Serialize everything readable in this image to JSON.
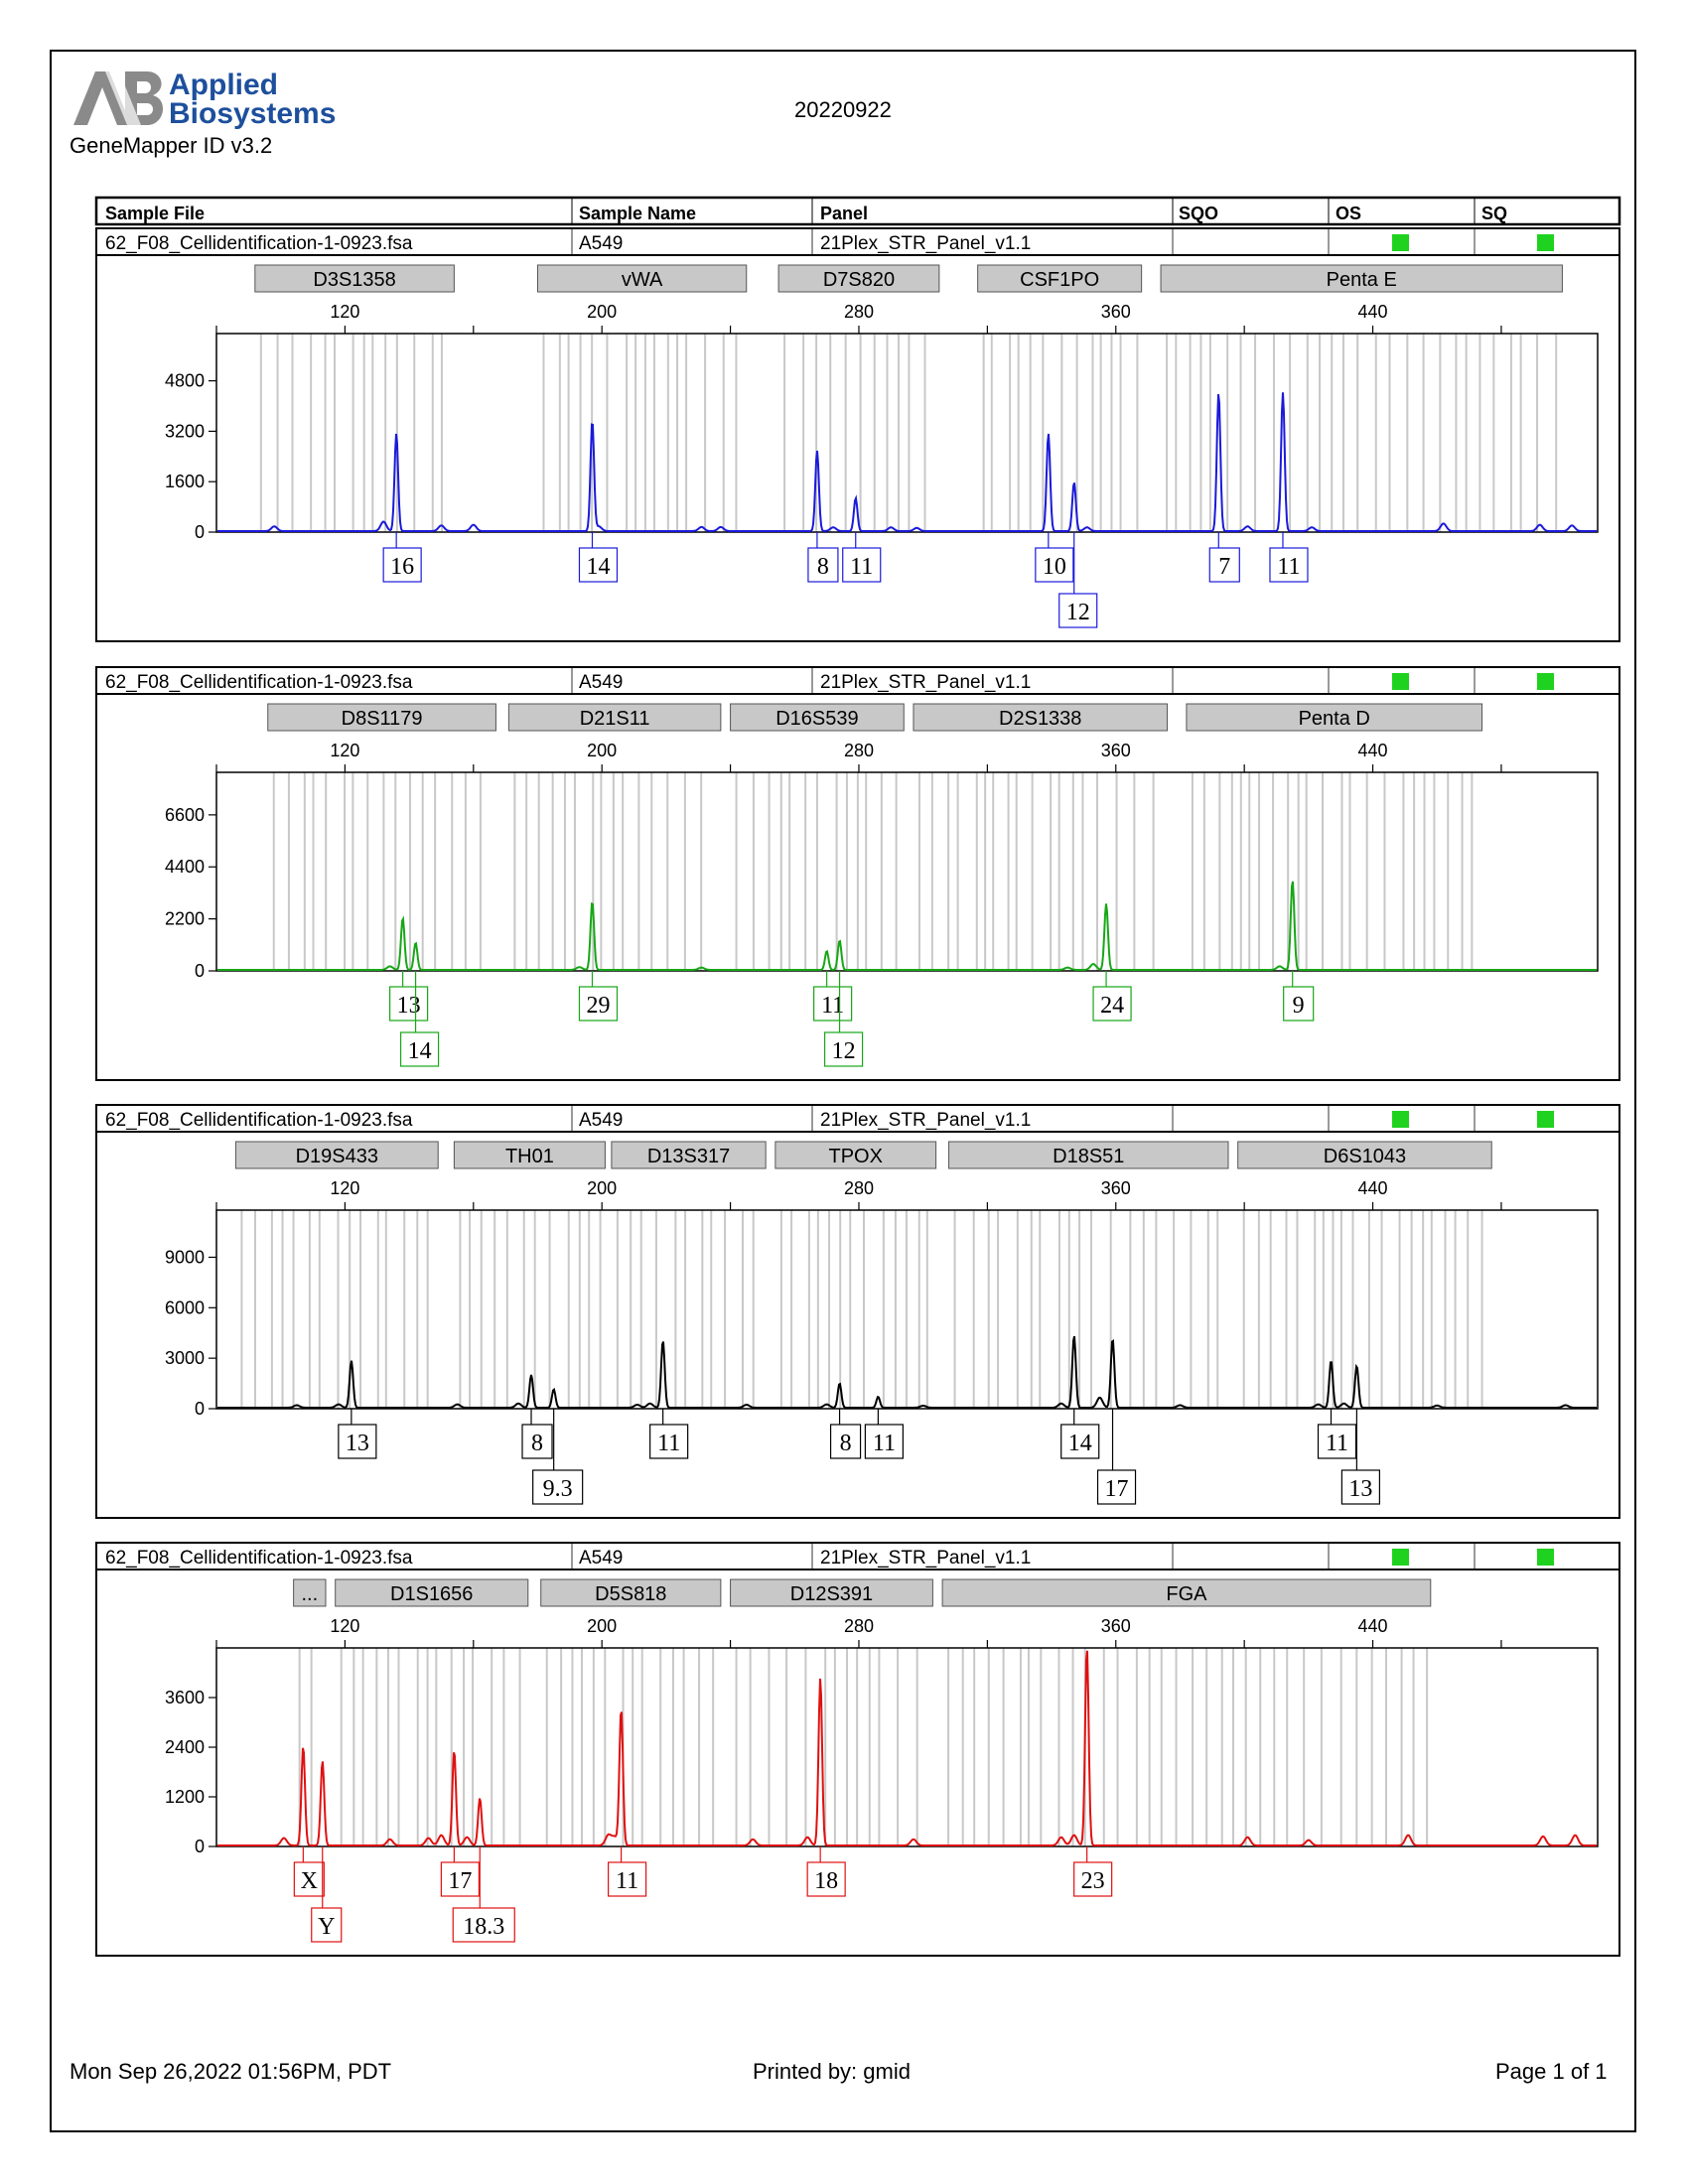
{
  "report": {
    "brand_line1": "Applied",
    "brand_line2": "Biosystems",
    "software": "GeneMapper ID v3.2",
    "date_code": "20220922",
    "printed_at": "Mon Sep 26,2022 01:56PM, PDT",
    "printed_by": "Printed by: gmid",
    "page": "Page 1 of 1"
  },
  "table_header": {
    "sample_file": "Sample File",
    "sample_name": "Sample Name",
    "panel": "Panel",
    "sqo": "SQO",
    "os": "OS",
    "sq": "SQ"
  },
  "colors": {
    "blue": "#1a1adb",
    "green": "#17a717",
    "black": "#000000",
    "red": "#e01010",
    "marker_fill": "#c8c8c8",
    "status_green": "#1fd21f"
  },
  "chart_data": [
    {
      "type": "line",
      "dye": "blue",
      "sample_file": "62_F08_Cellidentification-1-0923.fsa",
      "sample_name": "A549",
      "panel": "21Plex_STR_Panel_v1.1",
      "os_status": "green",
      "sq_status": "green",
      "markers": [
        {
          "name": "D3S1358",
          "start": 92,
          "end": 154
        },
        {
          "name": "vWA",
          "start": 180,
          "end": 245
        },
        {
          "name": "D7S820",
          "start": 255,
          "end": 305
        },
        {
          "name": "CSF1PO",
          "start": 317,
          "end": 368
        },
        {
          "name": "Penta E",
          "start": 374,
          "end": 499
        }
      ],
      "x_ticks": [
        120,
        200,
        280,
        360,
        440
      ],
      "x_range": [
        80,
        510
      ],
      "y_ticks": [
        0,
        1600,
        3200,
        4800
      ],
      "y_range": [
        0,
        6300
      ],
      "peaks": [
        {
          "x": 136,
          "y": 3100,
          "allele": "16"
        },
        {
          "x": 197,
          "y": 3500,
          "allele": "14"
        },
        {
          "x": 267,
          "y": 2550,
          "allele": "8"
        },
        {
          "x": 279,
          "y": 1050,
          "allele": "11"
        },
        {
          "x": 339,
          "y": 3100,
          "allele": "10"
        },
        {
          "x": 347,
          "y": 1550,
          "allele": "12"
        },
        {
          "x": 392,
          "y": 4400,
          "allele": "7"
        },
        {
          "x": 412,
          "y": 4400,
          "allele": "11"
        }
      ],
      "minor_peaks": [
        {
          "x": 98,
          "y": 150
        },
        {
          "x": 132,
          "y": 300
        },
        {
          "x": 150,
          "y": 180
        },
        {
          "x": 160,
          "y": 200
        },
        {
          "x": 199,
          "y": 150
        },
        {
          "x": 231,
          "y": 130
        },
        {
          "x": 237,
          "y": 130
        },
        {
          "x": 272,
          "y": 120
        },
        {
          "x": 290,
          "y": 120
        },
        {
          "x": 298,
          "y": 100
        },
        {
          "x": 351,
          "y": 120
        },
        {
          "x": 401,
          "y": 150
        },
        {
          "x": 421,
          "y": 120
        },
        {
          "x": 462,
          "y": 240
        },
        {
          "x": 492,
          "y": 200
        },
        {
          "x": 502,
          "y": 180
        }
      ]
    },
    {
      "type": "line",
      "dye": "green",
      "sample_file": "62_F08_Cellidentification-1-0923.fsa",
      "sample_name": "A549",
      "panel": "21Plex_STR_Panel_v1.1",
      "os_status": "green",
      "sq_status": "green",
      "markers": [
        {
          "name": "D8S1179",
          "start": 96,
          "end": 167
        },
        {
          "name": "D21S11",
          "start": 171,
          "end": 237
        },
        {
          "name": "D16S539",
          "start": 240,
          "end": 294
        },
        {
          "name": "D2S1338",
          "start": 297,
          "end": 376
        },
        {
          "name": "Penta D",
          "start": 382,
          "end": 474
        }
      ],
      "x_ticks": [
        120,
        200,
        280,
        360,
        440
      ],
      "x_range": [
        80,
        510
      ],
      "y_ticks": [
        0,
        2200,
        4400,
        6600
      ],
      "y_range": [
        0,
        8400
      ],
      "peaks": [
        {
          "x": 138,
          "y": 2200,
          "allele": "13"
        },
        {
          "x": 142,
          "y": 1150,
          "allele": "14"
        },
        {
          "x": 197,
          "y": 2900,
          "allele": "29"
        },
        {
          "x": 270,
          "y": 800,
          "allele": "11"
        },
        {
          "x": 274,
          "y": 1250,
          "allele": "12"
        },
        {
          "x": 357,
          "y": 2800,
          "allele": "24"
        },
        {
          "x": 415,
          "y": 3800,
          "allele": "9"
        }
      ],
      "minor_peaks": [
        {
          "x": 134,
          "y": 150
        },
        {
          "x": 193,
          "y": 120
        },
        {
          "x": 231,
          "y": 100
        },
        {
          "x": 345,
          "y": 100
        },
        {
          "x": 353,
          "y": 250
        },
        {
          "x": 411,
          "y": 150
        }
      ]
    },
    {
      "type": "line",
      "dye": "black",
      "sample_file": "62_F08_Cellidentification-1-0923.fsa",
      "sample_name": "A549",
      "panel": "21Plex_STR_Panel_v1.1",
      "os_status": "green",
      "sq_status": "green",
      "markers": [
        {
          "name": "D19S433",
          "start": 86,
          "end": 149
        },
        {
          "name": "TH01",
          "start": 154,
          "end": 201
        },
        {
          "name": "D13S317",
          "start": 203,
          "end": 251
        },
        {
          "name": "TPOX",
          "start": 254,
          "end": 304
        },
        {
          "name": "D18S51",
          "start": 308,
          "end": 395
        },
        {
          "name": "D6S1043",
          "start": 398,
          "end": 477
        }
      ],
      "x_ticks": [
        120,
        200,
        280,
        360,
        440
      ],
      "x_range": [
        80,
        510
      ],
      "y_ticks": [
        0,
        3000,
        6000,
        9000
      ],
      "y_range": [
        0,
        11800
      ],
      "peaks": [
        {
          "x": 122,
          "y": 2800,
          "allele": "13"
        },
        {
          "x": 178,
          "y": 1950,
          "allele": "8"
        },
        {
          "x": 185,
          "y": 1100,
          "allele": "9.3"
        },
        {
          "x": 219,
          "y": 4000,
          "allele": "11"
        },
        {
          "x": 274,
          "y": 1450,
          "allele": "8"
        },
        {
          "x": 286,
          "y": 650,
          "allele": "11"
        },
        {
          "x": 347,
          "y": 4300,
          "allele": "14"
        },
        {
          "x": 359,
          "y": 4100,
          "allele": "17"
        },
        {
          "x": 427,
          "y": 2800,
          "allele": "11"
        },
        {
          "x": 435,
          "y": 2500,
          "allele": "13"
        }
      ],
      "minor_peaks": [
        {
          "x": 105,
          "y": 150
        },
        {
          "x": 118,
          "y": 200
        },
        {
          "x": 155,
          "y": 200
        },
        {
          "x": 174,
          "y": 250
        },
        {
          "x": 211,
          "y": 180
        },
        {
          "x": 215,
          "y": 250
        },
        {
          "x": 245,
          "y": 180
        },
        {
          "x": 270,
          "y": 200
        },
        {
          "x": 300,
          "y": 120
        },
        {
          "x": 343,
          "y": 250
        },
        {
          "x": 355,
          "y": 600
        },
        {
          "x": 380,
          "y": 150
        },
        {
          "x": 423,
          "y": 200
        },
        {
          "x": 431,
          "y": 250
        },
        {
          "x": 460,
          "y": 130
        },
        {
          "x": 500,
          "y": 150
        }
      ]
    },
    {
      "type": "line",
      "dye": "red",
      "sample_file": "62_F08_Cellidentification-1-0923.fsa",
      "sample_name": "A549",
      "panel": "21Plex_STR_Panel_v1.1",
      "os_status": "green",
      "sq_status": "green",
      "markers": [
        {
          "name": "...",
          "start": 104,
          "end": 114
        },
        {
          "name": "D1S1656",
          "start": 117,
          "end": 177
        },
        {
          "name": "D5S818",
          "start": 181,
          "end": 237
        },
        {
          "name": "D12S391",
          "start": 240,
          "end": 303
        },
        {
          "name": "FGA",
          "start": 306,
          "end": 458
        }
      ],
      "x_ticks": [
        120,
        200,
        280,
        360,
        440
      ],
      "x_range": [
        80,
        510
      ],
      "y_ticks": [
        0,
        1200,
        2400,
        3600
      ],
      "y_range": [
        0,
        4800
      ],
      "peaks": [
        {
          "x": 107,
          "y": 2400,
          "allele": "X"
        },
        {
          "x": 113,
          "y": 2050,
          "allele": "Y"
        },
        {
          "x": 154,
          "y": 2300,
          "allele": "17"
        },
        {
          "x": 162,
          "y": 1150,
          "allele": "18.3"
        },
        {
          "x": 206,
          "y": 3300,
          "allele": "11"
        },
        {
          "x": 268,
          "y": 4050,
          "allele": "18"
        },
        {
          "x": 351,
          "y": 4800,
          "allele": "23"
        }
      ],
      "minor_peaks": [
        {
          "x": 101,
          "y": 180
        },
        {
          "x": 134,
          "y": 150
        },
        {
          "x": 146,
          "y": 180
        },
        {
          "x": 150,
          "y": 250
        },
        {
          "x": 158,
          "y": 200
        },
        {
          "x": 202,
          "y": 250
        },
        {
          "x": 204,
          "y": 200
        },
        {
          "x": 247,
          "y": 150
        },
        {
          "x": 264,
          "y": 200
        },
        {
          "x": 297,
          "y": 150
        },
        {
          "x": 343,
          "y": 200
        },
        {
          "x": 347,
          "y": 250
        },
        {
          "x": 401,
          "y": 200
        },
        {
          "x": 420,
          "y": 130
        },
        {
          "x": 451,
          "y": 250
        },
        {
          "x": 493,
          "y": 220
        },
        {
          "x": 503,
          "y": 250
        }
      ]
    }
  ]
}
